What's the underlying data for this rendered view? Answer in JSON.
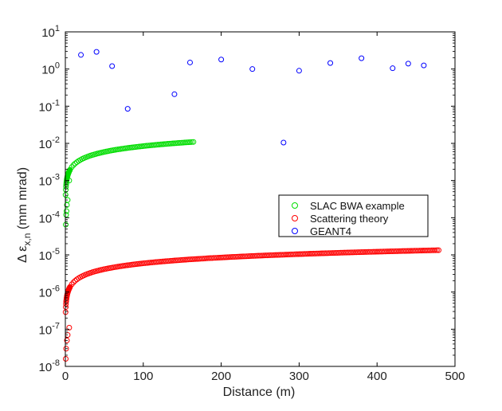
{
  "chart_data": {
    "type": "scatter",
    "title": "",
    "xlabel": "Distance (m)",
    "ylabel": {
      "prefix": "Δ ε",
      "subscript": "x,n",
      "suffix": " (mm mrad)"
    },
    "xlim": [
      0,
      500
    ],
    "ylim": [
      1e-08,
      10
    ],
    "yscale": "log",
    "x_ticks": [
      0,
      100,
      200,
      300,
      400,
      500
    ],
    "y_ticks": [
      -8,
      -7,
      -6,
      -5,
      -4,
      -3,
      -2,
      -1,
      0,
      1
    ],
    "tick_base": "10",
    "grid": false,
    "legend_position": "center-right",
    "series": [
      {
        "name": "SLAC BWA example",
        "color": "#00dd00",
        "model": {
          "form": "a*x^p",
          "a": 0.00077,
          "p": 0.52,
          "x_start": 0,
          "x_end": 165
        },
        "points": [
          [
            0.5,
            6.5e-05
          ],
          [
            1,
            0.00012
          ],
          [
            1.5,
            0.00015
          ],
          [
            2,
            0.00022
          ],
          [
            3,
            0.0003
          ],
          [
            5,
            0.001
          ],
          [
            10,
            0.0026
          ],
          [
            20,
            0.0037
          ],
          [
            40,
            0.0053
          ],
          [
            60,
            0.0066
          ],
          [
            80,
            0.0076
          ],
          [
            100,
            0.0086
          ],
          [
            120,
            0.0096
          ],
          [
            140,
            0.0105
          ],
          [
            165,
            0.0112
          ]
        ]
      },
      {
        "name": "Scattering theory",
        "color": "#ff0000",
        "model": {
          "form": "a*x^p",
          "a": 5.4e-07,
          "p": 0.52,
          "x_start": 0,
          "x_end": 480
        },
        "points": [
          [
            0.5,
            1.6e-08
          ],
          [
            1,
            3e-08
          ],
          [
            2,
            5e-08
          ],
          [
            3,
            7e-08
          ],
          [
            5,
            1.1e-07
          ],
          [
            10,
            1.8e-06
          ],
          [
            20,
            2.6e-06
          ],
          [
            50,
            4.1e-06
          ],
          [
            100,
            5.6e-06
          ],
          [
            200,
            8e-06
          ],
          [
            300,
            9.8e-06
          ],
          [
            400,
            1.17e-05
          ],
          [
            480,
            1.35e-05
          ]
        ]
      },
      {
        "name": "GEANT4",
        "color": "#0000ff",
        "points": [
          [
            20,
            2.4
          ],
          [
            40,
            2.9
          ],
          [
            60,
            1.2
          ],
          [
            80,
            0.085
          ],
          [
            140,
            0.21
          ],
          [
            160,
            1.5
          ],
          [
            200,
            1.8
          ],
          [
            240,
            1.0
          ],
          [
            280,
            0.0105
          ],
          [
            300,
            0.9
          ],
          [
            340,
            1.45
          ],
          [
            380,
            1.95
          ],
          [
            420,
            1.05
          ],
          [
            440,
            1.4
          ],
          [
            460,
            1.25
          ]
        ]
      }
    ]
  }
}
